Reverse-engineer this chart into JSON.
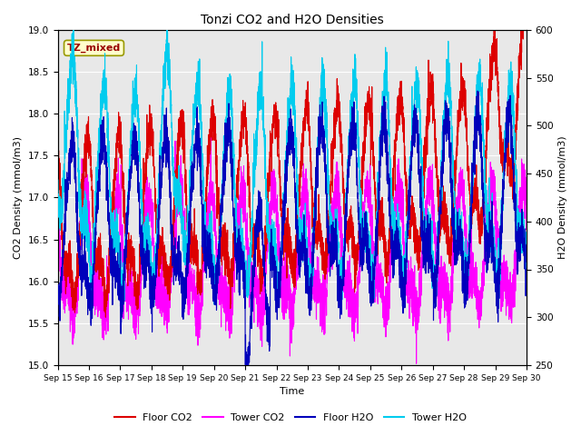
{
  "title": "Tonzi CO2 and H2O Densities",
  "xlabel": "Time",
  "ylabel_left": "CO2 Density (mmol/m3)",
  "ylabel_right": "H2O Density (mmol/m3)",
  "ylim_left": [
    15.0,
    19.0
  ],
  "ylim_right": [
    250,
    600
  ],
  "yticks_left": [
    15.0,
    15.5,
    16.0,
    16.5,
    17.0,
    17.5,
    18.0,
    18.5,
    19.0
  ],
  "yticks_right": [
    250,
    300,
    350,
    400,
    450,
    500,
    550,
    600
  ],
  "date_start": 15,
  "date_end": 30,
  "n_points": 4320,
  "annotation_text": "TZ_mixed",
  "annotation_facecolor": "#ffffcc",
  "annotation_edgecolor": "#999900",
  "annotation_textcolor": "#990000",
  "floor_co2_color": "#dd0000",
  "tower_co2_color": "#ff00ff",
  "floor_h2o_color": "#0000bb",
  "tower_h2o_color": "#00ccee",
  "legend_labels": [
    "Floor CO2",
    "Tower CO2",
    "Floor H2O",
    "Tower H2O"
  ],
  "bg_color": "#e8e8e8",
  "linewidth": 0.8,
  "seed": 42
}
